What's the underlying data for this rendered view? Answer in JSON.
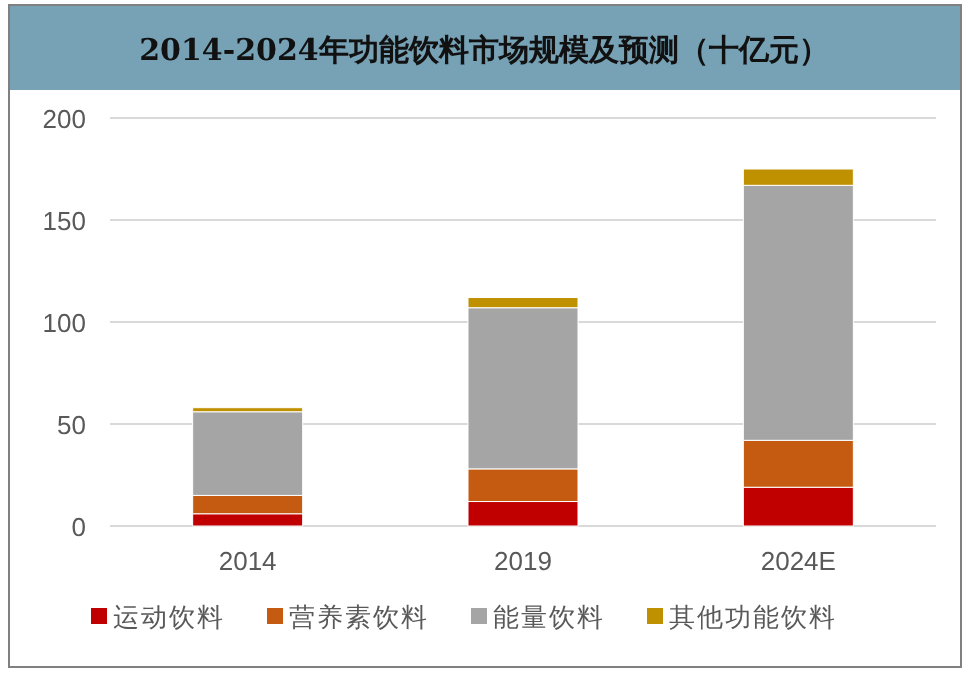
{
  "chart_data": {
    "type": "bar",
    "title": "2014-2024年功能饮料市场规模及预测（十亿元）",
    "categories": [
      "2014",
      "2019",
      "2024E"
    ],
    "stacked": true,
    "series": [
      {
        "name": "运动饮料",
        "color": "#c00000",
        "values": [
          6,
          12,
          19
        ]
      },
      {
        "name": "营养素饮料",
        "color": "#c55a11",
        "values": [
          9,
          16,
          23
        ]
      },
      {
        "name": "能量饮料",
        "color": "#a5a5a5",
        "values": [
          41,
          79,
          125
        ]
      },
      {
        "name": "其他功能饮料",
        "color": "#bf9000",
        "values": [
          2,
          5,
          8
        ]
      }
    ],
    "ylim": [
      0,
      200
    ],
    "yticks": [
      0,
      50,
      100,
      150,
      200
    ],
    "grid": "y",
    "legend": "bottom"
  }
}
